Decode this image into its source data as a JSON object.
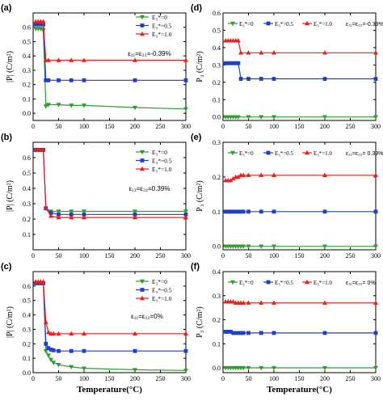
{
  "chart_data": [
    {
      "panel": "(a)",
      "type": "line",
      "ylabel": "|P| (C/m²)",
      "xlim": [
        0,
        300
      ],
      "ylim": [
        -0.05,
        0.7
      ],
      "xticks": [
        0,
        50,
        100,
        150,
        200,
        250,
        300
      ],
      "yticks": [
        0.0,
        0.1,
        0.2,
        0.3,
        0.4,
        0.5,
        0.6
      ],
      "legend_position": "top-right",
      "legend_labels": [
        "E₃*=0",
        "E₃*=0.5",
        "E₃*=1.0"
      ],
      "annotation": "ε₁₁=ε₂₂=-0.39%",
      "series": [
        {
          "marker": "tri-down",
          "color": "#2e9e2e",
          "x": [
            5,
            10,
            15,
            20,
            25,
            30,
            50,
            75,
            100,
            200,
            300
          ],
          "y": [
            0.59,
            0.59,
            0.59,
            0.58,
            0.05,
            0.06,
            0.06,
            0.055,
            0.055,
            0.04,
            0.03
          ]
        },
        {
          "marker": "square",
          "color": "#1f3fd0",
          "x": [
            5,
            10,
            15,
            20,
            25,
            30,
            50,
            75,
            100,
            200,
            300
          ],
          "y": [
            0.62,
            0.62,
            0.62,
            0.62,
            0.23,
            0.23,
            0.23,
            0.23,
            0.23,
            0.23,
            0.23
          ]
        },
        {
          "marker": "tri-up",
          "color": "#e82020",
          "x": [
            5,
            10,
            15,
            20,
            25,
            30,
            50,
            75,
            100,
            200,
            300
          ],
          "y": [
            0.64,
            0.64,
            0.64,
            0.64,
            0.37,
            0.37,
            0.37,
            0.37,
            0.37,
            0.37,
            0.37
          ]
        }
      ]
    },
    {
      "panel": "(d)",
      "type": "line",
      "ylabel": "P₃ (C/m²)",
      "xlim": [
        0,
        300
      ],
      "ylim": [
        -0.02,
        0.6
      ],
      "xticks": [
        0,
        50,
        100,
        150,
        200,
        250,
        300
      ],
      "yticks": [
        0.0,
        0.1,
        0.2,
        0.3,
        0.4,
        0.5,
        0.6
      ],
      "legend_position": "top",
      "legend_labels": [
        "E₃*=0",
        "E₃*=0.5",
        "E₃*=1.0"
      ],
      "annotation": "ε₁₁=ε₂₂=-0.39%",
      "series": [
        {
          "marker": "tri-down",
          "color": "#2e9e2e",
          "x": [
            5,
            10,
            15,
            20,
            25,
            30,
            50,
            75,
            100,
            200,
            300
          ],
          "y": [
            0,
            0,
            0,
            0,
            0,
            0,
            0,
            0,
            0,
            0,
            0
          ]
        },
        {
          "marker": "square",
          "color": "#1f3fd0",
          "x": [
            5,
            10,
            15,
            20,
            25,
            30,
            35,
            50,
            75,
            100,
            200,
            300
          ],
          "y": [
            0.31,
            0.31,
            0.31,
            0.31,
            0.31,
            0.31,
            0.22,
            0.22,
            0.22,
            0.22,
            0.22,
            0.22
          ]
        },
        {
          "marker": "tri-up",
          "color": "#e82020",
          "x": [
            5,
            10,
            15,
            20,
            25,
            30,
            35,
            50,
            75,
            100,
            200,
            300
          ],
          "y": [
            0.44,
            0.44,
            0.44,
            0.44,
            0.44,
            0.44,
            0.37,
            0.37,
            0.37,
            0.37,
            0.37,
            0.37
          ]
        }
      ]
    },
    {
      "panel": "(b)",
      "type": "line",
      "ylabel": "|P| (C/m²)",
      "xlim": [
        0,
        300
      ],
      "ylim": [
        0.0,
        0.7
      ],
      "xticks": [
        0,
        50,
        100,
        150,
        200,
        250,
        300
      ],
      "yticks": [
        0.1,
        0.2,
        0.3,
        0.4,
        0.5,
        0.6
      ],
      "legend_position": "center-right",
      "legend_labels": [
        "E₃*=0",
        "E₃*=0.5",
        "E₃*=1.0"
      ],
      "annotation": "ε₁₁=ε₂₂=0.39%",
      "series": [
        {
          "marker": "tri-down",
          "color": "#2e9e2e",
          "x": [
            5,
            10,
            15,
            20,
            25,
            35,
            50,
            75,
            100,
            200,
            300
          ],
          "y": [
            0.65,
            0.65,
            0.65,
            0.65,
            0.27,
            0.25,
            0.25,
            0.25,
            0.25,
            0.25,
            0.25
          ]
        },
        {
          "marker": "square",
          "color": "#1f3fd0",
          "x": [
            5,
            10,
            15,
            20,
            25,
            35,
            50,
            75,
            100,
            200,
            300
          ],
          "y": [
            0.65,
            0.65,
            0.65,
            0.65,
            0.27,
            0.24,
            0.23,
            0.23,
            0.23,
            0.23,
            0.23
          ]
        },
        {
          "marker": "tri-up",
          "color": "#e82020",
          "x": [
            5,
            10,
            15,
            20,
            25,
            35,
            50,
            75,
            100,
            200,
            300
          ],
          "y": [
            0.65,
            0.65,
            0.65,
            0.65,
            0.27,
            0.22,
            0.21,
            0.21,
            0.21,
            0.21,
            0.21
          ]
        }
      ]
    },
    {
      "panel": "(e)",
      "type": "line",
      "ylabel": "P₃ (C/m²)",
      "xlim": [
        0,
        300
      ],
      "ylim": [
        -0.01,
        0.3
      ],
      "xticks": [
        0,
        50,
        100,
        150,
        200,
        250,
        300
      ],
      "yticks": [
        0.0,
        0.1,
        0.2,
        0.3
      ],
      "legend_position": "top",
      "legend_labels": [
        "E₃*=0",
        "E₃*=0.5",
        "E₃*=1.0"
      ],
      "annotation": "ε₁₁=ε₂₂= 0.39%",
      "series": [
        {
          "marker": "tri-down",
          "color": "#2e9e2e",
          "x": [
            5,
            10,
            15,
            20,
            25,
            30,
            35,
            40,
            50,
            75,
            100,
            200,
            300
          ],
          "y": [
            0,
            0,
            0,
            0,
            0,
            0,
            0,
            0,
            0,
            0,
            0,
            0,
            0
          ]
        },
        {
          "marker": "square",
          "color": "#1f3fd0",
          "x": [
            5,
            10,
            15,
            20,
            25,
            30,
            35,
            40,
            50,
            75,
            100,
            200,
            300
          ],
          "y": [
            0.1,
            0.1,
            0.1,
            0.1,
            0.1,
            0.1,
            0.1,
            0.1,
            0.1,
            0.1,
            0.1,
            0.1,
            0.1
          ]
        },
        {
          "marker": "tri-up",
          "color": "#e82020",
          "x": [
            5,
            10,
            15,
            20,
            25,
            30,
            35,
            40,
            50,
            75,
            100,
            200,
            300
          ],
          "y": [
            0.19,
            0.19,
            0.19,
            0.195,
            0.2,
            0.2,
            0.205,
            0.205,
            0.205,
            0.205,
            0.205,
            0.205,
            0.205
          ]
        }
      ]
    },
    {
      "panel": "(c)",
      "type": "line",
      "ylabel": "|P| (C/m²)",
      "xlim": [
        0,
        300
      ],
      "ylim": [
        0.0,
        0.7
      ],
      "xticks": [
        0,
        50,
        100,
        150,
        200,
        250,
        300
      ],
      "yticks": [
        0.0,
        0.1,
        0.2,
        0.3,
        0.4,
        0.5,
        0.6
      ],
      "legend_position": "center-right",
      "legend_labels": [
        "E₃*=0",
        "E₃*=0.5",
        "E₃*=1.0"
      ],
      "annotation": "ε₁₁=ε₂₂=0%",
      "xlabel": "Temperature(°C)",
      "series": [
        {
          "marker": "tri-down",
          "color": "#2e9e2e",
          "x": [
            5,
            10,
            15,
            20,
            25,
            30,
            35,
            40,
            50,
            75,
            100,
            200,
            300
          ],
          "y": [
            0.62,
            0.62,
            0.62,
            0.62,
            0.15,
            0.12,
            0.09,
            0.07,
            0.055,
            0.04,
            0.03,
            0.02,
            0.015
          ]
        },
        {
          "marker": "square",
          "color": "#1f3fd0",
          "x": [
            5,
            10,
            15,
            20,
            25,
            30,
            35,
            40,
            50,
            75,
            100,
            200,
            300
          ],
          "y": [
            0.62,
            0.62,
            0.62,
            0.62,
            0.2,
            0.17,
            0.16,
            0.155,
            0.15,
            0.15,
            0.15,
            0.15,
            0.15
          ]
        },
        {
          "marker": "tri-up",
          "color": "#e82020",
          "x": [
            5,
            10,
            15,
            20,
            25,
            30,
            35,
            40,
            50,
            75,
            100,
            200,
            300
          ],
          "y": [
            0.63,
            0.63,
            0.63,
            0.63,
            0.35,
            0.28,
            0.27,
            0.27,
            0.27,
            0.27,
            0.27,
            0.27,
            0.27
          ]
        }
      ]
    },
    {
      "panel": "(f)",
      "type": "line",
      "ylabel": "P₃ (C/m²)",
      "xlim": [
        0,
        300
      ],
      "ylim": [
        -0.02,
        0.4
      ],
      "xticks": [
        0,
        50,
        100,
        150,
        200,
        250,
        300
      ],
      "yticks": [
        0.0,
        0.1,
        0.2,
        0.3,
        0.4
      ],
      "legend_position": "top",
      "legend_labels": [
        "E₃*=0",
        "E₃*=0.5",
        "E₃*=1.0"
      ],
      "annotation": "ε₁₁=ε₂₂= 0%",
      "xlabel": "Temperature(°C)",
      "series": [
        {
          "marker": "tri-down",
          "color": "#2e9e2e",
          "x": [
            5,
            10,
            15,
            20,
            25,
            30,
            35,
            40,
            50,
            75,
            100,
            200,
            300
          ],
          "y": [
            0,
            0,
            0,
            0,
            0,
            0,
            0,
            0,
            0,
            0,
            0,
            0,
            0
          ]
        },
        {
          "marker": "square",
          "color": "#1f3fd0",
          "x": [
            5,
            10,
            15,
            20,
            25,
            30,
            35,
            40,
            50,
            75,
            100,
            200,
            300
          ],
          "y": [
            0.15,
            0.15,
            0.15,
            0.145,
            0.145,
            0.145,
            0.145,
            0.145,
            0.145,
            0.145,
            0.145,
            0.145,
            0.145
          ]
        },
        {
          "marker": "tri-up",
          "color": "#e82020",
          "x": [
            5,
            10,
            15,
            20,
            25,
            30,
            35,
            40,
            50,
            75,
            100,
            200,
            300
          ],
          "y": [
            0.275,
            0.275,
            0.275,
            0.275,
            0.27,
            0.27,
            0.27,
            0.27,
            0.27,
            0.27,
            0.27,
            0.27,
            0.27
          ]
        }
      ]
    }
  ]
}
